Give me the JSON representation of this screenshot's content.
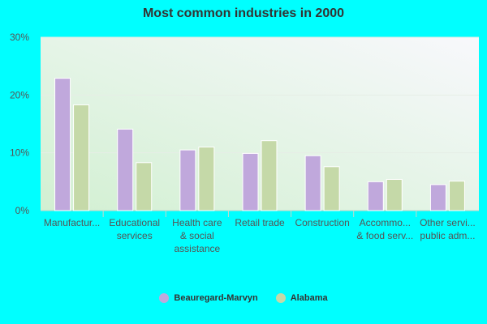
{
  "chart_data": {
    "type": "bar",
    "title": "Most common industries in 2000",
    "categories": [
      [
        "Manufactur..."
      ],
      [
        "Educational",
        "services"
      ],
      [
        "Health care",
        "& social",
        "assistance"
      ],
      [
        "Retail trade"
      ],
      [
        "Construction"
      ],
      [
        "Accommo...",
        "& food serv..."
      ],
      [
        "Other servi...",
        "public adm..."
      ]
    ],
    "series": [
      {
        "name": "Beauregard-Marvyn",
        "color": "#c0a8dc",
        "values": [
          22.9,
          14.1,
          10.5,
          9.9,
          9.5,
          5.0,
          4.5
        ]
      },
      {
        "name": "Alabama",
        "color": "#c5d9a8",
        "values": [
          18.3,
          8.3,
          11.0,
          12.1,
          7.6,
          5.4,
          5.1
        ]
      }
    ],
    "yticks": [
      "0%",
      "10%",
      "20%",
      "30%"
    ],
    "ylim": [
      0,
      30
    ],
    "grid": true,
    "legend_position": "bottom"
  }
}
